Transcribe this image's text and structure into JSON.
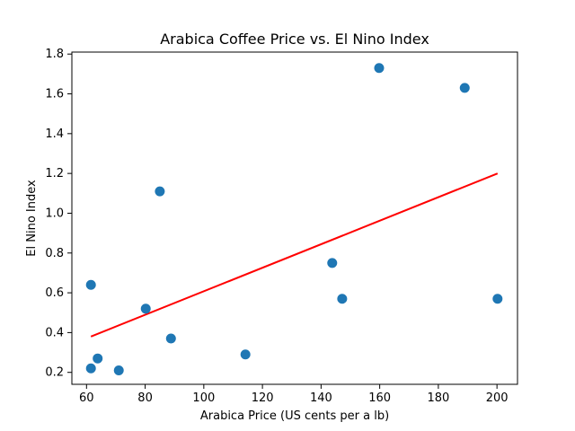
{
  "chart_data": {
    "type": "scatter",
    "title": "Arabica Coffee Price vs. El Nino Index",
    "xlabel": "Arabica Price (US cents per a lb)",
    "ylabel": "El Nino Index",
    "xlim": [
      55,
      207
    ],
    "ylim": [
      0.14,
      1.81
    ],
    "xticks": [
      60,
      80,
      100,
      120,
      140,
      160,
      180,
      200
    ],
    "yticks": [
      0.2,
      0.4,
      0.6,
      0.8,
      1.0,
      1.2,
      1.4,
      1.6,
      1.8
    ],
    "xtick_labels": [
      "60",
      "80",
      "100",
      "120",
      "140",
      "160",
      "180",
      "200"
    ],
    "ytick_labels": [
      "0.2",
      "0.4",
      "0.6",
      "0.8",
      "1.0",
      "1.2",
      "1.4",
      "1.6",
      "1.8"
    ],
    "grid": false,
    "series": [
      {
        "points": [
          {
            "x": 61.5,
            "y": 0.64
          },
          {
            "x": 61.5,
            "y": 0.22
          },
          {
            "x": 63.8,
            "y": 0.27
          },
          {
            "x": 71.0,
            "y": 0.21
          },
          {
            "x": 80.2,
            "y": 0.52
          },
          {
            "x": 85.0,
            "y": 1.11
          },
          {
            "x": 88.8,
            "y": 0.37
          },
          {
            "x": 114.2,
            "y": 0.29
          },
          {
            "x": 143.8,
            "y": 0.75
          },
          {
            "x": 147.2,
            "y": 0.57
          },
          {
            "x": 159.8,
            "y": 1.73
          },
          {
            "x": 189.0,
            "y": 1.63
          },
          {
            "x": 200.2,
            "y": 0.57
          }
        ],
        "color": "#1f77b4"
      }
    ],
    "trend_line": {
      "x": [
        61.5,
        200.2
      ],
      "y": [
        0.38,
        1.2
      ],
      "color": "#ff0000"
    }
  }
}
